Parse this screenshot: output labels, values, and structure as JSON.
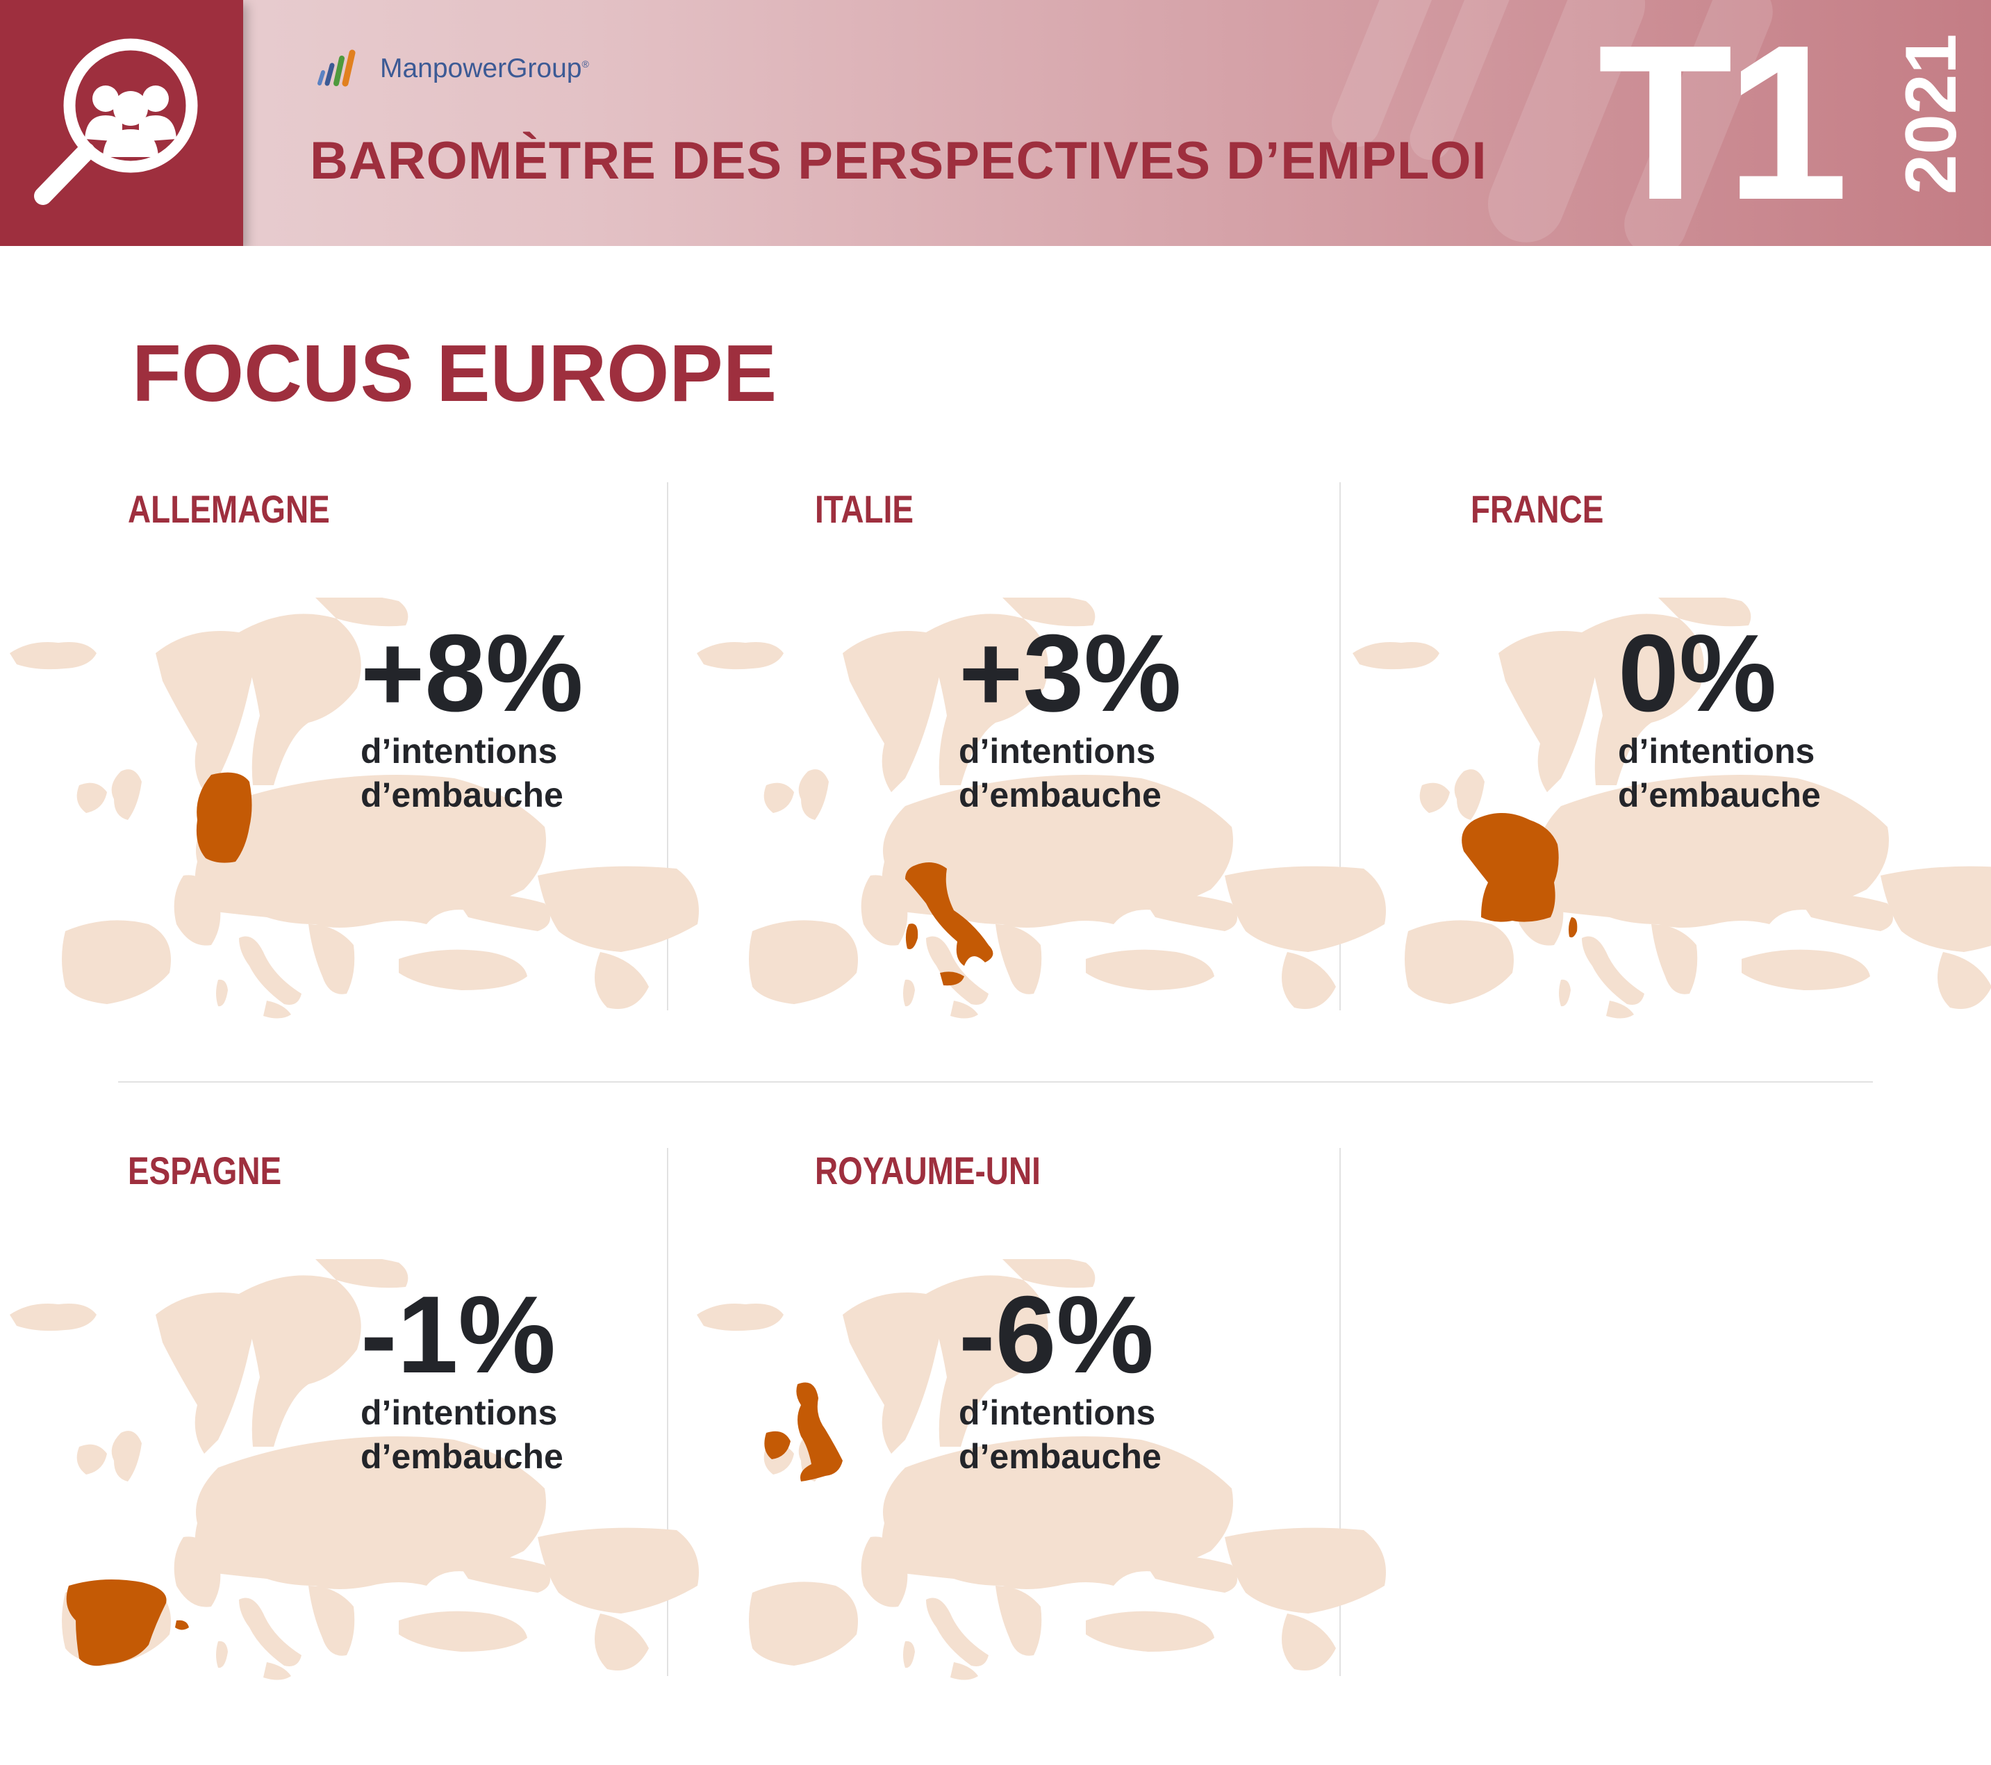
{
  "header": {
    "brand": "ManpowerGroup",
    "brand_mark": "®",
    "title": "BAROMÈTRE DES PERSPECTIVES D’EMPLOI",
    "quarter": "T1",
    "year": "2021",
    "icon": "magnifier-people-icon"
  },
  "focus_title": "FOCUS EUROPE",
  "colors": {
    "accent": "#9e2f3e",
    "highlight": "#c45a05",
    "map_base": "#f4e0d0",
    "text_dark": "#23252a"
  },
  "panels": [
    {
      "country": "ALLEMAGNE",
      "value": "+8%",
      "caption_1": "d’intentions",
      "caption_2": "d’embauche",
      "highlight": "germany"
    },
    {
      "country": "ITALIE",
      "value": "+3%",
      "caption_1": "d’intentions",
      "caption_2": "d’embauche",
      "highlight": "italy"
    },
    {
      "country": "FRANCE",
      "value": "0%",
      "caption_1": "d’intentions",
      "caption_2": "d’embauche",
      "highlight": "france"
    },
    {
      "country": "ESPAGNE",
      "value": "-1%",
      "caption_1": "d’intentions",
      "caption_2": "d’embauche",
      "highlight": "spain"
    },
    {
      "country": "ROYAUME-UNI",
      "value": "-6%",
      "caption_1": "d’intentions",
      "caption_2": "d’embauche",
      "highlight": "uk"
    }
  ]
}
